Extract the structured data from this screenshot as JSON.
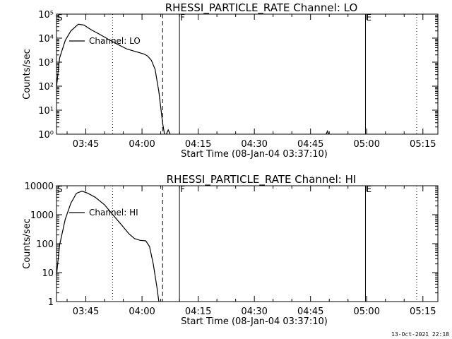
{
  "footer": {
    "stamp": "13-Oct-2021 22:18"
  },
  "chart_data": [
    {
      "type": "line",
      "title": "RHESSI_PARTICLE_RATE Channel: LO",
      "xlabel": "Start Time (08-Jan-04 03:37:10)",
      "ylabel": "Counts/sec",
      "yscale": "log",
      "ylim": [
        1,
        100000
      ],
      "xlim": [
        "03:37:10",
        "05:19:00"
      ],
      "xticks": [
        "03:45",
        "04:00",
        "04:15",
        "04:30",
        "04:45",
        "05:00",
        "05:15"
      ],
      "yticks": [
        "10⁰",
        "10¹",
        "10²",
        "10³",
        "10⁴",
        "10⁵"
      ],
      "legend": {
        "label": "Channel: LO",
        "position": "top-left"
      },
      "series": [
        {
          "name": "Channel: LO",
          "points": [
            [
              "03:37:10",
              90
            ],
            [
              "03:38:00",
              1500
            ],
            [
              "03:39:30",
              8000
            ],
            [
              "03:41:00",
              20000
            ],
            [
              "03:43:00",
              38000
            ],
            [
              "03:44:30",
              35000
            ],
            [
              "03:46:30",
              22000
            ],
            [
              "03:48:30",
              15000
            ],
            [
              "03:51:00",
              9000
            ],
            [
              "03:53:30",
              5500
            ],
            [
              "03:56:00",
              3500
            ],
            [
              "03:58:30",
              2700
            ],
            [
              "04:00:30",
              2200
            ],
            [
              "04:01:30",
              1800
            ],
            [
              "04:02:30",
              1200
            ],
            [
              "04:03:30",
              500
            ],
            [
              "04:04:30",
              60
            ],
            [
              "04:05:30",
              3
            ],
            [
              "04:06:00",
              1
            ]
          ]
        },
        {
          "name": "",
          "points": [
            [
              "04:06:30",
              1
            ],
            [
              "04:07:00",
              1.5
            ],
            [
              "04:07:30",
              1
            ]
          ]
        },
        {
          "name": "",
          "points": [
            [
              "04:49:10",
              1
            ],
            [
              "04:49:30",
              1.35
            ],
            [
              "04:49:50",
              1
            ]
          ]
        }
      ],
      "markers": [
        {
          "time": "03:52:10",
          "style": "dotted",
          "label": ""
        },
        {
          "time": "04:05:30",
          "style": "dashed",
          "label": ""
        },
        {
          "time": "04:10:00",
          "style": "solid",
          "label": "F"
        },
        {
          "time": "04:59:40",
          "style": "solid",
          "label": "E"
        },
        {
          "time": "05:13:20",
          "style": "dotted",
          "label": ""
        }
      ],
      "corner_label": "S"
    },
    {
      "type": "line",
      "title": "RHESSI_PARTICLE_RATE Channel: HI",
      "xlabel": "Start Time (08-Jan-04 03:37:10)",
      "ylabel": "Counts/sec",
      "yscale": "log",
      "ylim": [
        1,
        10000
      ],
      "xlim": [
        "03:37:10",
        "05:19:00"
      ],
      "xticks": [
        "03:45",
        "04:00",
        "04:15",
        "04:30",
        "04:45",
        "05:00",
        "05:15"
      ],
      "yticks": [
        "1",
        "10",
        "100",
        "1000",
        "10000"
      ],
      "legend": {
        "label": "Channel: HI",
        "position": "top-left"
      },
      "series": [
        {
          "name": "Channel: HI",
          "points": [
            [
              "03:37:10",
              8
            ],
            [
              "03:38:00",
              90
            ],
            [
              "03:39:30",
              700
            ],
            [
              "03:41:00",
              2500
            ],
            [
              "03:42:30",
              5500
            ],
            [
              "03:44:00",
              6500
            ],
            [
              "03:45:30",
              5500
            ],
            [
              "03:47:30",
              4000
            ],
            [
              "03:50:00",
              2200
            ],
            [
              "03:52:30",
              900
            ],
            [
              "03:54:30",
              450
            ],
            [
              "03:56:30",
              220
            ],
            [
              "03:58:00",
              150
            ],
            [
              "03:59:30",
              130
            ],
            [
              "04:01:00",
              125
            ],
            [
              "04:02:00",
              80
            ],
            [
              "04:03:00",
              20
            ],
            [
              "04:04:00",
              3
            ],
            [
              "04:04:30",
              1
            ]
          ]
        }
      ],
      "markers": [
        {
          "time": "03:52:10",
          "style": "dotted",
          "label": ""
        },
        {
          "time": "04:05:30",
          "style": "dashed",
          "label": ""
        },
        {
          "time": "04:10:00",
          "style": "solid",
          "label": "F"
        },
        {
          "time": "04:59:40",
          "style": "solid",
          "label": "E"
        },
        {
          "time": "05:13:20",
          "style": "dotted",
          "label": ""
        }
      ],
      "corner_label": "S"
    }
  ]
}
